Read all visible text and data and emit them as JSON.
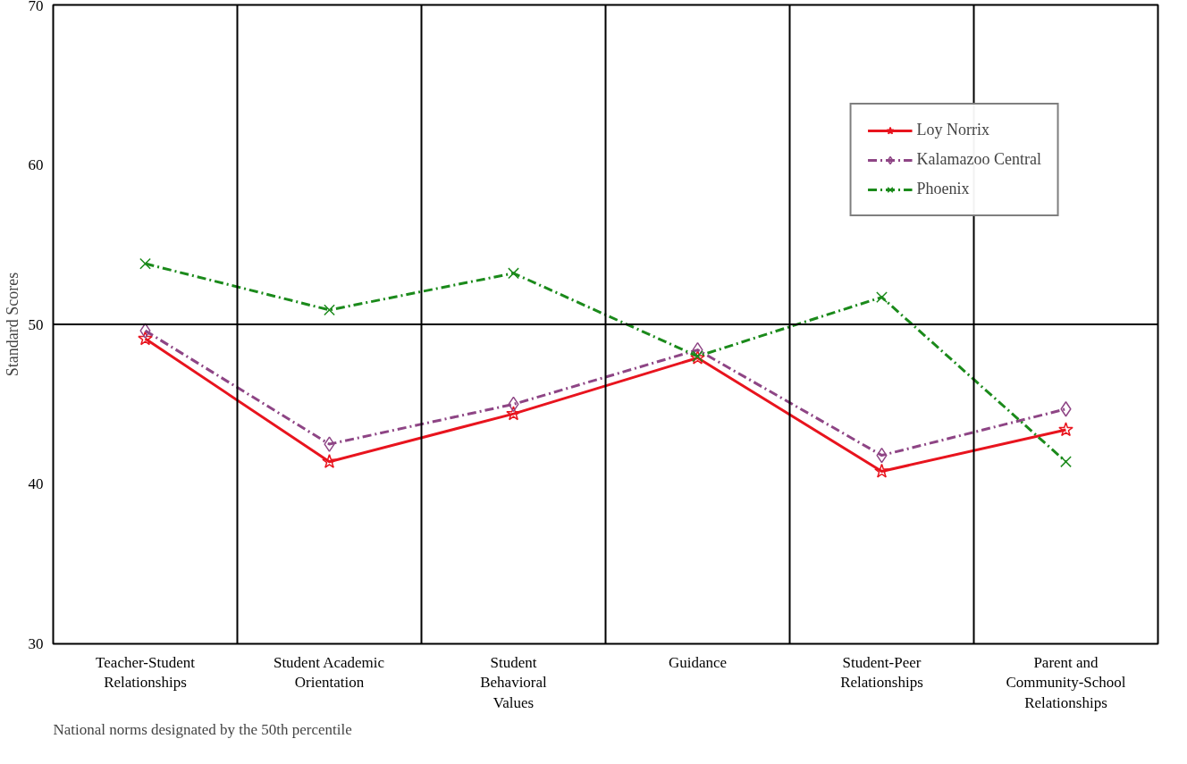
{
  "chart_data": {
    "type": "line",
    "ylabel": "Standard Scores",
    "categories": [
      "Teacher-Student Relationships",
      "Student Academic Orientation",
      "Student Behavioral Values",
      "Guidance",
      "Student-Peer Relationships",
      "Parent and Community-School Relationships"
    ],
    "series": [
      {
        "name": "Loy Norrix",
        "color": "#e8141e",
        "marker": "star",
        "line_style": "solid",
        "values": [
          49.1,
          41.4,
          44.4,
          47.9,
          40.8,
          43.4
        ]
      },
      {
        "name": "Kalamazoo Central",
        "color": "#8e4585",
        "marker": "diamond",
        "line_style": "dashed",
        "values": [
          49.6,
          42.5,
          45.0,
          48.4,
          41.8,
          44.7
        ]
      },
      {
        "name": "Phoenix",
        "color": "#1b8a1b",
        "marker": "cross",
        "line_style": "dashed",
        "values": [
          53.8,
          50.9,
          53.2,
          48.0,
          51.7,
          41.4
        ]
      }
    ],
    "ylim": [
      30,
      70
    ],
    "yticks": [
      30,
      40,
      50,
      60,
      70
    ],
    "grid": "x",
    "legend": "top right",
    "ref_lines": [
      {
        "axis": "y",
        "value": 50,
        "color": "#000000",
        "line_style": "solid"
      }
    ],
    "annotations": [
      "National norms designated by the 50th percentile"
    ]
  }
}
